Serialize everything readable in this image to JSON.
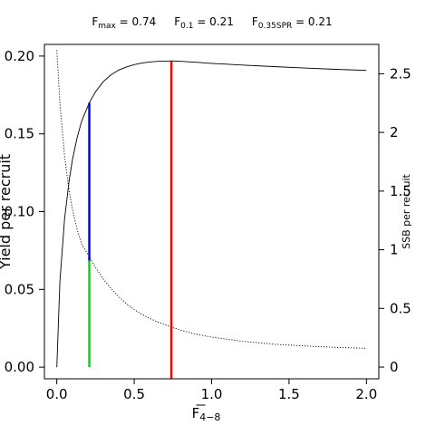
{
  "chart_data": {
    "type": "line",
    "title_parts": [
      {
        "base": "F",
        "sub": "max",
        "rest": " = 0.74"
      },
      {
        "base": "F",
        "sub": "0.1",
        "rest": " = 0.21"
      },
      {
        "base": "F",
        "sub": "0.35SPR",
        "rest": " = 0.21"
      }
    ],
    "xlabel": {
      "base": "F",
      "sub": "4−8"
    },
    "ylabel_left": "Yield per recruit",
    "ylabel_right": "SSB per recruit",
    "xlim": [
      -0.08,
      2.08
    ],
    "ylim_left": [
      -0.0075,
      0.2075
    ],
    "ylim_right": [
      -0.1,
      2.75
    ],
    "x_ticks": [
      0.0,
      0.5,
      1.0,
      1.5,
      2.0
    ],
    "x_tick_labels": [
      "0.0",
      "0.5",
      "1.0",
      "1.5",
      "2.0"
    ],
    "y_left_ticks": [
      0.0,
      0.05,
      0.1,
      0.15,
      0.2
    ],
    "y_left_tick_labels": [
      "0.00",
      "0.05",
      "0.10",
      "0.15",
      "0.20"
    ],
    "y_right_ticks": [
      0,
      0.5,
      1,
      1.5,
      2,
      2.5
    ],
    "y_right_tick_labels": [
      "0",
      "0.5",
      "1",
      "1.5",
      "2",
      "2.5"
    ],
    "series": [
      {
        "axis": "left",
        "style": "solid",
        "color": "#000000",
        "x": [
          0.0,
          0.02,
          0.05,
          0.08,
          0.1,
          0.13,
          0.16,
          0.21,
          0.25,
          0.3,
          0.35,
          0.4,
          0.45,
          0.5,
          0.55,
          0.6,
          0.65,
          0.7,
          0.74,
          0.8,
          0.9,
          1.0,
          1.2,
          1.4,
          1.6,
          1.8,
          2.0
        ],
        "y": [
          0.0,
          0.055,
          0.095,
          0.12,
          0.133,
          0.147,
          0.158,
          0.17,
          0.177,
          0.1835,
          0.188,
          0.191,
          0.193,
          0.1945,
          0.1955,
          0.1962,
          0.1966,
          0.1968,
          0.1969,
          0.1966,
          0.196,
          0.1953,
          0.1942,
          0.1932,
          0.1923,
          0.1915,
          0.1908
        ]
      },
      {
        "axis": "right",
        "style": "dotted",
        "color": "#000000",
        "x": [
          0.0,
          0.02,
          0.05,
          0.08,
          0.1,
          0.13,
          0.16,
          0.21,
          0.25,
          0.3,
          0.35,
          0.4,
          0.45,
          0.5,
          0.55,
          0.6,
          0.65,
          0.7,
          0.74,
          0.8,
          0.9,
          1.0,
          1.2,
          1.4,
          1.6,
          1.8,
          2.0
        ],
        "y": [
          2.7,
          2.25,
          1.8,
          1.5,
          1.35,
          1.18,
          1.05,
          0.94,
          0.85,
          0.75,
          0.67,
          0.6,
          0.54,
          0.49,
          0.45,
          0.415,
          0.385,
          0.36,
          0.34,
          0.315,
          0.28,
          0.255,
          0.22,
          0.195,
          0.18,
          0.168,
          0.16
        ]
      }
    ],
    "reference_lines": [
      {
        "x": 0.21,
        "y_from": 0.0,
        "y_to": 0.0685,
        "color": "#00dd00"
      },
      {
        "x": 0.21,
        "y_from": 0.0685,
        "y_to": 0.17,
        "color": "#0000ff"
      },
      {
        "x": 0.74,
        "y_from": -0.0075,
        "y_to": 0.1969,
        "color": "#ff0000"
      }
    ]
  }
}
